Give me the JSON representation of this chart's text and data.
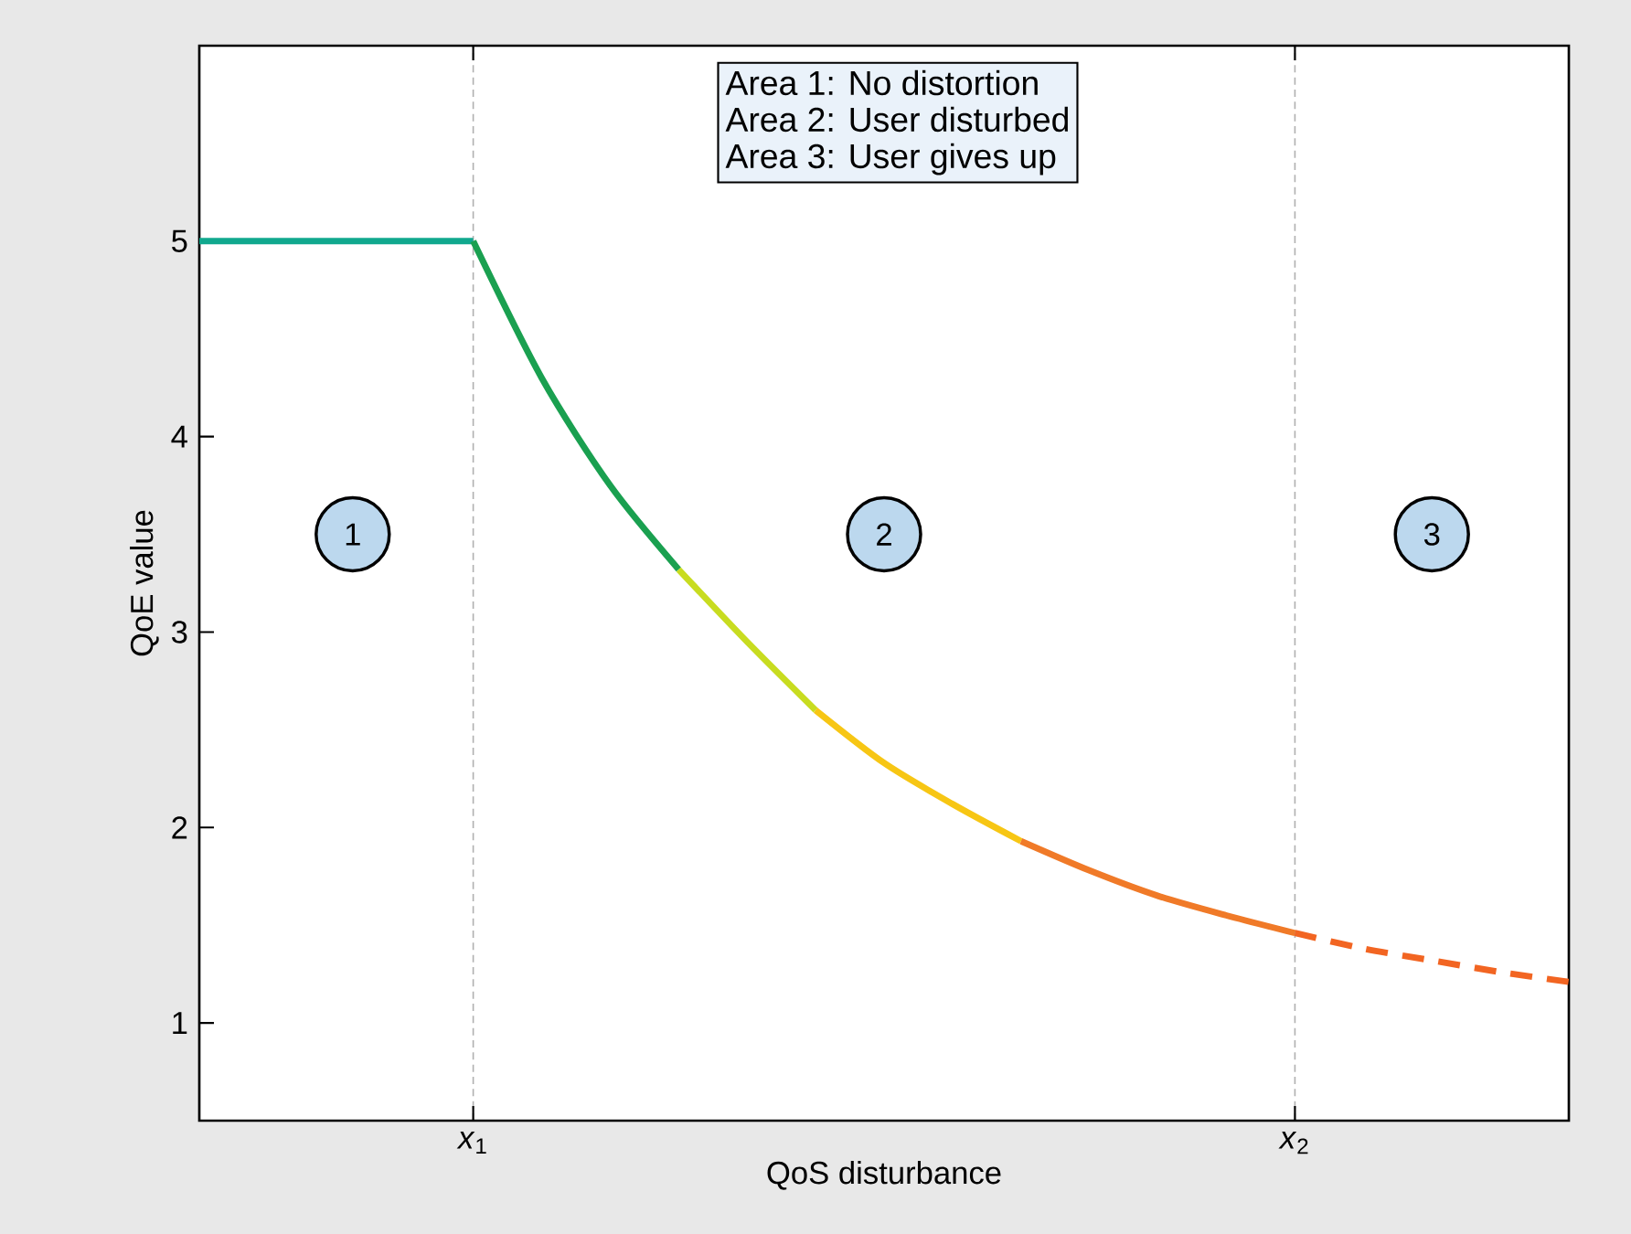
{
  "chart_data": {
    "type": "line",
    "xlabel": "QoS disturbance",
    "ylabel": "QoE value",
    "categories": [
      null,
      null,
      null,
      null,
      "*x*$_{1}$",
      null,
      null,
      null,
      null,
      null,
      null,
      null,
      null,
      null,
      null,
      null,
      "*x*$_{2}$",
      null,
      null,
      null,
      null
    ],
    "ylim": [
      0.5,
      6.0
    ],
    "yticks": [
      1,
      2,
      3,
      4,
      5
    ],
    "grid": "x",
    "marker": "none",
    "line_style": "solid",
    "series": [
      {
        "color": "#11a88e",
        "values": [
          5,
          5,
          5,
          5,
          5,
          null,
          null,
          null,
          null,
          null,
          null,
          null,
          null,
          null,
          null,
          null,
          null,
          null,
          null,
          null,
          null
        ]
      },
      {
        "color": "#1aa050",
        "values": [
          null,
          null,
          null,
          null,
          5,
          4.3,
          3.75,
          3.32,
          null,
          null,
          null,
          null,
          null,
          null,
          null,
          null,
          null,
          null,
          null,
          null,
          null
        ]
      },
      {
        "color": "#c8dc20",
        "values": [
          null,
          null,
          null,
          null,
          null,
          null,
          null,
          3.32,
          2.95,
          2.6,
          null,
          null,
          null,
          null,
          null,
          null,
          null,
          null,
          null,
          null,
          null
        ]
      },
      {
        "color": "#f7c614",
        "values": [
          null,
          null,
          null,
          null,
          null,
          null,
          null,
          null,
          null,
          2.6,
          2.33,
          2.12,
          1.93,
          null,
          null,
          null,
          null,
          null,
          null,
          null,
          null
        ]
      },
      {
        "color": "#f07a28",
        "values": [
          null,
          null,
          null,
          null,
          null,
          null,
          null,
          null,
          null,
          null,
          null,
          null,
          1.93,
          1.78,
          1.65,
          1.55,
          1.46,
          null,
          null,
          null,
          null
        ]
      },
      {
        "color": "#f26522",
        "line_style": "dashed",
        "values": [
          null,
          null,
          null,
          null,
          null,
          null,
          null,
          null,
          null,
          null,
          null,
          null,
          null,
          null,
          null,
          null,
          1.46,
          1.38,
          1.32,
          1.26,
          1.21
        ]
      }
    ],
    "annotations": [
      "Area 1: No distortion",
      "Area 2: User disturbed",
      "Area 3: User gives up",
      "1",
      "2",
      "3"
    ]
  }
}
